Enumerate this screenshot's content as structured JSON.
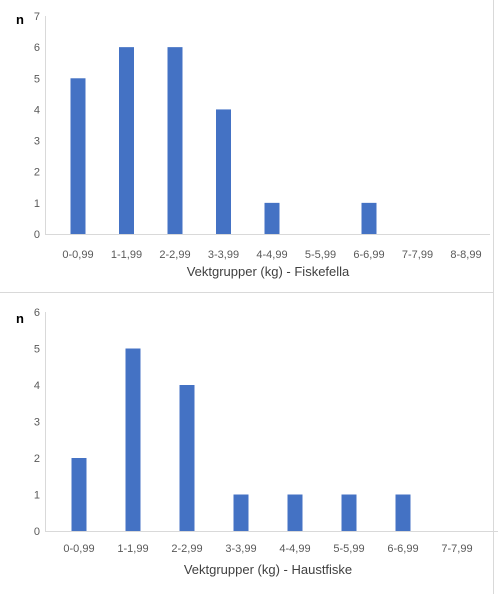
{
  "chart_data": [
    {
      "type": "bar",
      "ylabel": "n",
      "xlabel": "Vektgrupper (kg) - Fiskefella",
      "categories": [
        "0-0,99",
        "1-1,99",
        "2-2,99",
        "3-3,99",
        "4-4,99",
        "5-5,99",
        "6-6,99",
        "7-7,99",
        "8-8,99"
      ],
      "values": [
        5,
        6,
        6,
        4,
        1,
        0,
        1,
        0,
        0
      ],
      "ylim": [
        0,
        7
      ],
      "yticks": [
        0,
        1,
        2,
        3,
        4,
        5,
        6,
        7
      ],
      "grid": false,
      "color": "#4472C4"
    },
    {
      "type": "bar",
      "ylabel": "n",
      "xlabel": "Vektgrupper (kg) - Haustfiske",
      "categories": [
        "0-0,99",
        "1-1,99",
        "2-2,99",
        "3-3,99",
        "4-4,99",
        "5-5,99",
        "6-6,99",
        "7-7,99"
      ],
      "values": [
        2,
        5,
        4,
        1,
        1,
        1,
        1,
        0
      ],
      "ylim": [
        0,
        6
      ],
      "yticks": [
        0,
        1,
        2,
        3,
        4,
        5,
        6
      ],
      "grid": false,
      "color": "#4472C4"
    }
  ]
}
